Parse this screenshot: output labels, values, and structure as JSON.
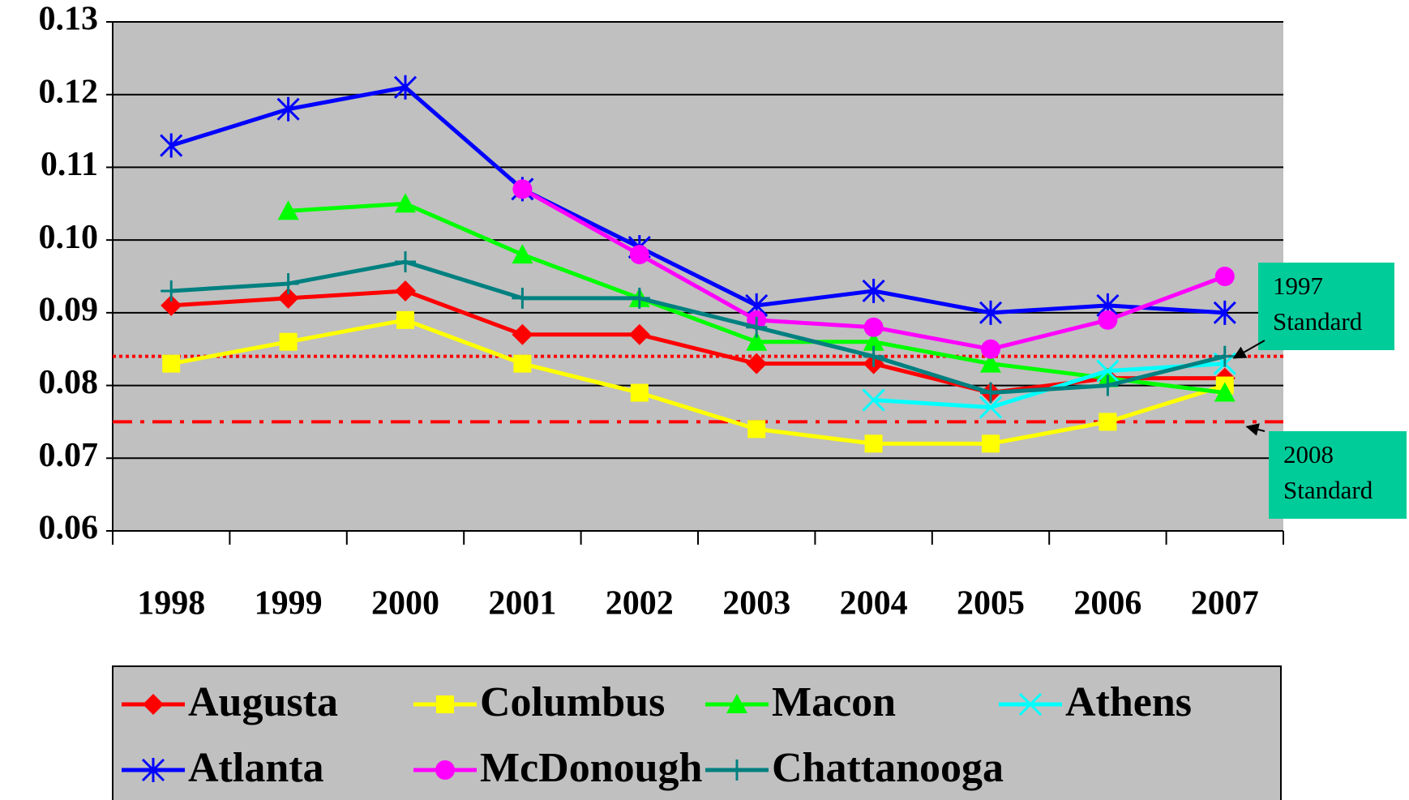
{
  "chart_data": {
    "type": "line",
    "categories": [
      "1998",
      "1999",
      "2000",
      "2001",
      "2002",
      "2003",
      "2004",
      "2005",
      "2006",
      "2007"
    ],
    "ylim": [
      0.06,
      0.13
    ],
    "yticks": [
      0.06,
      0.07,
      0.08,
      0.09,
      {
        "value": 0.1,
        "label": "0.10"
      },
      0.11,
      0.12,
      0.13
    ],
    "grid": true,
    "legend": "bottom",
    "series": [
      {
        "name": "Augusta",
        "color": "#ff0000",
        "marker": "diamond",
        "values": [
          0.091,
          0.092,
          0.093,
          0.087,
          0.087,
          0.083,
          0.083,
          0.079,
          0.081,
          0.081
        ]
      },
      {
        "name": "Columbus",
        "color": "#ffff00",
        "marker": "square",
        "values": [
          0.083,
          0.086,
          0.089,
          0.083,
          0.079,
          0.074,
          0.072,
          0.072,
          0.075,
          0.08
        ]
      },
      {
        "name": "Macon",
        "color": "#00ff00",
        "marker": "triangle",
        "values": [
          null,
          0.104,
          0.105,
          0.098,
          0.092,
          0.086,
          0.086,
          0.083,
          0.081,
          0.079
        ]
      },
      {
        "name": "Athens",
        "color": "#00ffff",
        "marker": "x",
        "values": [
          null,
          null,
          null,
          null,
          null,
          null,
          0.078,
          0.077,
          0.082,
          0.083
        ]
      },
      {
        "name": "Atlanta",
        "color": "#0000ff",
        "marker": "asterisk",
        "values": [
          0.113,
          0.118,
          0.121,
          0.107,
          0.099,
          0.091,
          0.093,
          0.09,
          0.091,
          0.09
        ]
      },
      {
        "name": "McDonough",
        "color": "#ff00ff",
        "marker": "circle",
        "values": [
          null,
          null,
          null,
          0.107,
          0.098,
          0.089,
          0.088,
          0.085,
          0.089,
          0.095
        ]
      },
      {
        "name": "Chattanooga",
        "color": "#008080",
        "marker": "plus",
        "values": [
          0.093,
          0.094,
          0.097,
          0.092,
          0.092,
          0.088,
          0.084,
          0.079,
          0.08,
          0.084
        ]
      }
    ],
    "reference_lines": [
      {
        "value": 0.084,
        "style": "dotted",
        "color": "#ff0000",
        "label_lines": [
          "1997",
          "Standard"
        ]
      },
      {
        "value": 0.075,
        "style": "dashdot",
        "color": "#ff0000",
        "label_lines": [
          "2008",
          "Standard"
        ]
      }
    ]
  }
}
